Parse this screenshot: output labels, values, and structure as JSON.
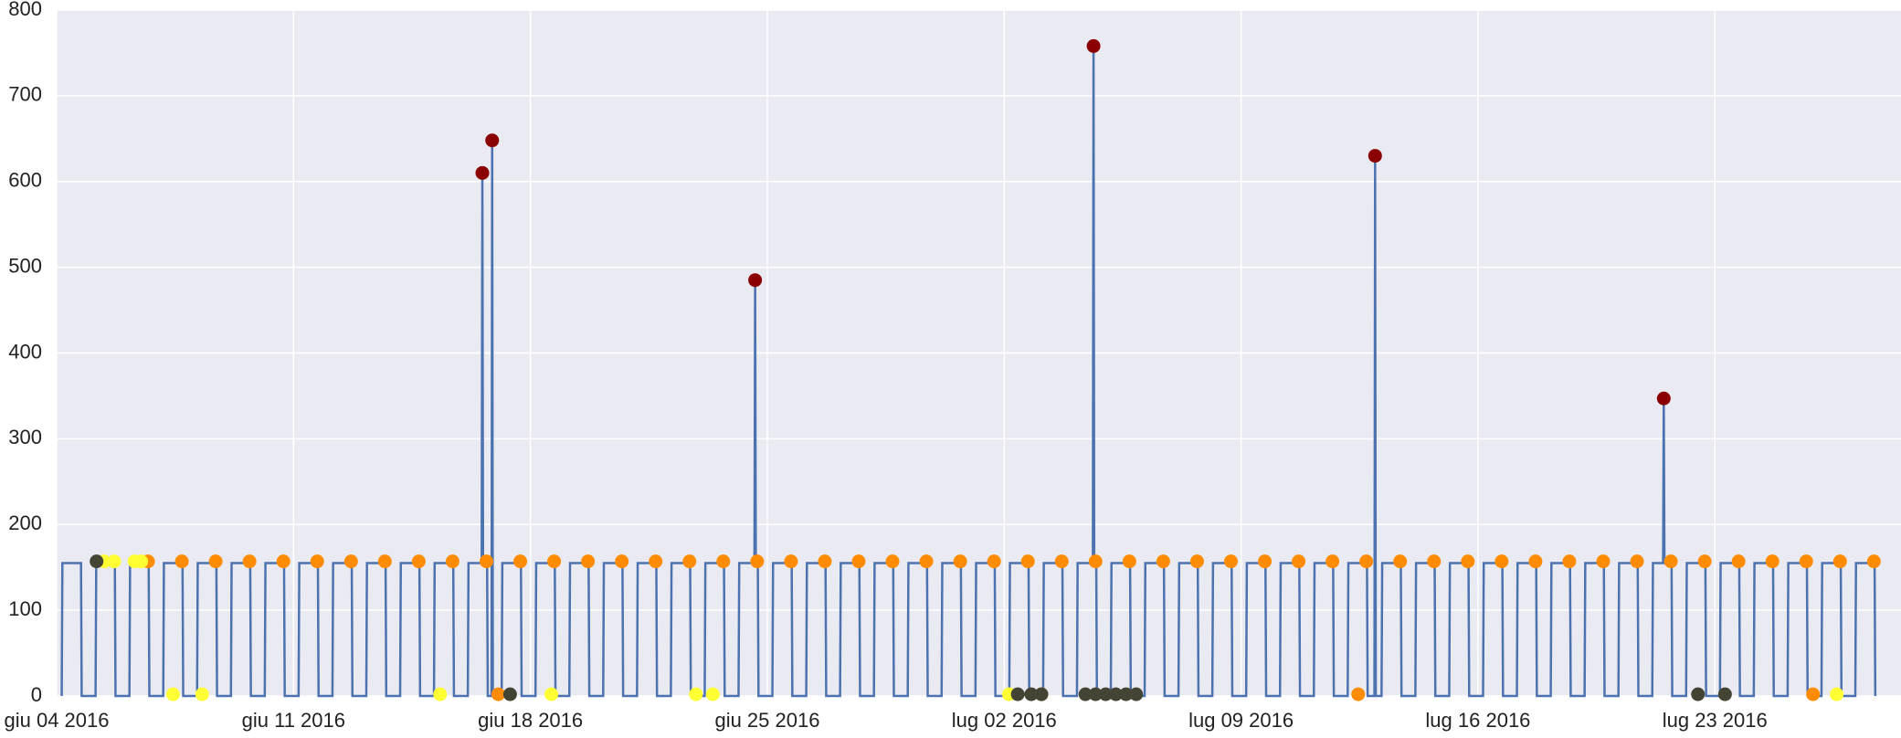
{
  "chart_data": {
    "type": "line",
    "xlim": [
      0,
      54.5
    ],
    "ylim": [
      0,
      800
    ],
    "xticks": [
      {
        "value": 0,
        "label": "giu 04 2016"
      },
      {
        "value": 7,
        "label": "giu 11 2016"
      },
      {
        "value": 14,
        "label": "giu 18 2016"
      },
      {
        "value": 21,
        "label": "giu 25 2016"
      },
      {
        "value": 28,
        "label": "lug 02 2016"
      },
      {
        "value": 35,
        "label": "lug 09 2016"
      },
      {
        "value": 42,
        "label": "lug 16 2016"
      },
      {
        "value": 49,
        "label": "lug 23 2016"
      }
    ],
    "yticks": [
      0,
      100,
      200,
      300,
      400,
      500,
      600,
      700,
      800
    ],
    "grid": true,
    "series": [
      {
        "type": "line",
        "color": "#4c72b0",
        "x": [
          0.15,
          0.17,
          0.72,
          0.74,
          1.15,
          1.17,
          1.72,
          1.74,
          2.15,
          2.17,
          2.72,
          2.74,
          3.15,
          3.17,
          3.72,
          3.74,
          4.15,
          4.17,
          4.72,
          4.74,
          5.15,
          5.17,
          5.72,
          5.74,
          6.15,
          6.17,
          6.72,
          6.74,
          7.15,
          7.17,
          7.72,
          7.74,
          8.15,
          8.17,
          8.72,
          8.74,
          9.15,
          9.17,
          9.72,
          9.74,
          10.15,
          10.17,
          10.72,
          10.74,
          11.15,
          11.17,
          11.72,
          11.74,
          12.15,
          12.17,
          12.56,
          12.58,
          12.6,
          12.72,
          12.74,
          12.85,
          12.87,
          12.89,
          13.15,
          13.17,
          13.72,
          13.74,
          14.15,
          14.17,
          14.72,
          14.74,
          15.15,
          15.17,
          15.72,
          15.74,
          16.15,
          16.17,
          16.72,
          16.74,
          17.15,
          17.17,
          17.72,
          17.74,
          18.15,
          18.17,
          18.72,
          18.74,
          19.15,
          19.17,
          19.72,
          19.74,
          20.15,
          20.17,
          20.62,
          20.64,
          20.66,
          20.72,
          20.74,
          21.15,
          21.17,
          21.72,
          21.74,
          22.15,
          22.17,
          22.72,
          22.74,
          23.15,
          23.17,
          23.72,
          23.74,
          24.15,
          24.17,
          24.72,
          24.74,
          25.15,
          25.17,
          25.72,
          25.74,
          26.15,
          26.17,
          26.72,
          26.74,
          27.15,
          27.17,
          27.72,
          27.74,
          28.15,
          28.17,
          28.72,
          28.74,
          29.15,
          29.17,
          29.72,
          29.74,
          30.15,
          30.17,
          30.62,
          30.64,
          30.66,
          30.72,
          30.74,
          31.15,
          31.17,
          31.72,
          31.74,
          32.15,
          32.17,
          32.72,
          32.74,
          33.15,
          33.17,
          33.72,
          33.74,
          34.15,
          34.17,
          34.72,
          34.74,
          35.15,
          35.17,
          35.72,
          35.74,
          36.15,
          36.17,
          36.72,
          36.74,
          37.15,
          37.17,
          37.72,
          37.74,
          38.15,
          38.17,
          38.72,
          38.74,
          38.94,
          38.96,
          38.98,
          39.15,
          39.17,
          39.72,
          39.74,
          40.15,
          40.17,
          40.72,
          40.74,
          41.15,
          41.17,
          41.72,
          41.74,
          42.15,
          42.17,
          42.72,
          42.74,
          43.15,
          43.17,
          43.72,
          43.74,
          44.15,
          44.17,
          44.72,
          44.74,
          45.15,
          45.17,
          45.72,
          45.74,
          46.15,
          46.17,
          46.72,
          46.74,
          47.15,
          47.17,
          47.47,
          47.49,
          47.51,
          47.72,
          47.74,
          48.15,
          48.17,
          48.72,
          48.74,
          49.15,
          49.17,
          49.72,
          49.74,
          50.15,
          50.17,
          50.72,
          50.74,
          51.15,
          51.17,
          51.72,
          51.74,
          52.15,
          52.17,
          52.72,
          52.74,
          53.15,
          53.17,
          53.72,
          53.74
        ],
        "values": [
          0,
          155,
          155,
          0,
          0,
          155,
          155,
          0,
          0,
          155,
          155,
          0,
          0,
          155,
          155,
          0,
          0,
          155,
          155,
          0,
          0,
          155,
          155,
          0,
          0,
          155,
          155,
          0,
          0,
          155,
          155,
          0,
          0,
          155,
          155,
          0,
          0,
          155,
          155,
          0,
          0,
          155,
          155,
          0,
          0,
          155,
          155,
          0,
          0,
          155,
          155,
          610,
          155,
          155,
          0,
          0,
          648,
          0,
          0,
          155,
          155,
          0,
          0,
          155,
          155,
          0,
          0,
          155,
          155,
          0,
          0,
          155,
          155,
          0,
          0,
          155,
          155,
          0,
          0,
          155,
          155,
          0,
          0,
          155,
          155,
          0,
          0,
          155,
          155,
          485,
          155,
          155,
          0,
          0,
          155,
          155,
          0,
          0,
          155,
          155,
          0,
          0,
          155,
          155,
          0,
          0,
          155,
          155,
          0,
          0,
          155,
          155,
          0,
          0,
          155,
          155,
          0,
          0,
          155,
          155,
          0,
          0,
          155,
          155,
          0,
          0,
          155,
          155,
          0,
          0,
          155,
          155,
          758,
          155,
          155,
          0,
          0,
          155,
          155,
          0,
          0,
          155,
          155,
          0,
          0,
          155,
          155,
          0,
          0,
          155,
          155,
          0,
          0,
          155,
          155,
          0,
          0,
          155,
          155,
          0,
          0,
          155,
          155,
          0,
          0,
          155,
          155,
          0,
          0,
          630,
          0,
          0,
          155,
          155,
          0,
          0,
          155,
          155,
          0,
          0,
          155,
          155,
          0,
          0,
          155,
          155,
          0,
          0,
          155,
          155,
          0,
          0,
          155,
          155,
          0,
          0,
          155,
          155,
          0,
          0,
          155,
          155,
          0,
          0,
          155,
          155,
          347,
          155,
          155,
          0,
          0,
          155,
          155,
          0,
          0,
          155,
          155,
          0,
          0,
          155,
          155,
          0,
          0,
          155,
          155,
          0,
          0,
          155,
          155,
          0,
          0,
          155,
          155,
          0
        ]
      },
      {
        "type": "scatter",
        "color": "#ff8c00",
        "x": [
          2.7,
          3.7,
          4.7,
          5.7,
          6.7,
          7.7,
          8.7,
          9.7,
          10.7,
          11.7,
          12.7,
          13.7,
          14.7,
          15.7,
          16.7,
          17.7,
          18.7,
          19.7,
          20.7,
          21.7,
          22.7,
          23.7,
          24.7,
          25.7,
          26.7,
          27.7,
          28.7,
          29.7,
          30.7,
          31.7,
          32.7,
          33.7,
          34.7,
          35.7,
          36.7,
          37.7,
          38.7,
          39.7,
          40.7,
          41.7,
          42.7,
          43.7,
          44.7,
          45.7,
          46.7,
          47.7,
          48.7,
          49.7,
          50.7,
          51.7,
          52.7,
          53.7,
          13.05,
          29.1,
          38.46,
          51.9
        ],
        "values": [
          157,
          157,
          157,
          157,
          157,
          157,
          157,
          157,
          157,
          157,
          157,
          157,
          157,
          157,
          157,
          157,
          157,
          157,
          157,
          157,
          157,
          157,
          157,
          157,
          157,
          157,
          157,
          157,
          157,
          157,
          157,
          157,
          157,
          157,
          157,
          157,
          157,
          157,
          157,
          157,
          157,
          157,
          157,
          157,
          157,
          157,
          157,
          157,
          157,
          157,
          157,
          157,
          2,
          2,
          2,
          2
        ]
      },
      {
        "type": "scatter",
        "color": "#8b0000",
        "x": [
          12.58,
          12.87,
          20.64,
          30.64,
          38.96,
          47.49
        ],
        "values": [
          610,
          648,
          485,
          758,
          630,
          347
        ]
      },
      {
        "type": "scatter",
        "color": "#ffff33",
        "x": [
          1.4,
          1.7,
          2.3,
          2.5,
          3.44,
          4.3,
          11.33,
          14.62,
          18.89,
          19.39,
          28.14,
          52.6
        ],
        "values": [
          157,
          157,
          157,
          157,
          2,
          2,
          2,
          2,
          2,
          2,
          2,
          2
        ]
      },
      {
        "type": "scatter",
        "color": "#444435",
        "x": [
          1.18,
          13.4,
          28.4,
          28.8,
          29.1,
          30.4,
          30.7,
          31.0,
          31.3,
          31.6,
          31.9,
          48.5,
          49.3
        ],
        "values": [
          157,
          2,
          2,
          2,
          2,
          2,
          2,
          2,
          2,
          2,
          2,
          2,
          2
        ]
      }
    ]
  }
}
